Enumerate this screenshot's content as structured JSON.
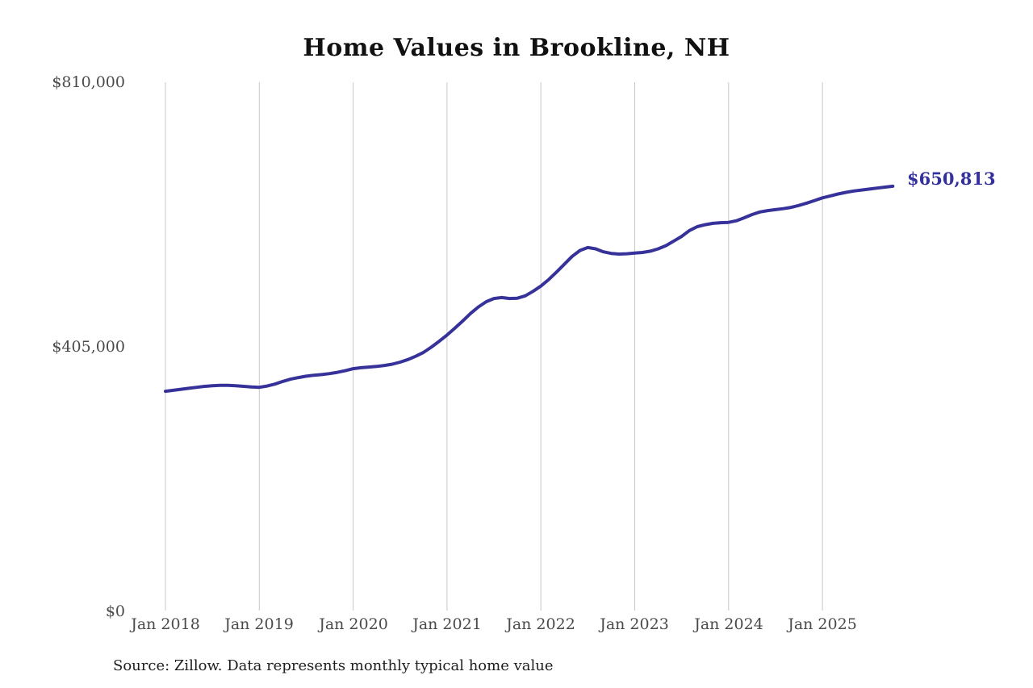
{
  "title": "Home Values in Brookline, NH",
  "source_note": "Source: Zillow. Data represents monthly typical home value",
  "colors": {
    "line": "#36329a",
    "end_label": "#34319e",
    "gridline": "#c8c8c8",
    "tick_text": "#4a4a4a",
    "title_text": "#111111"
  },
  "chart_data": {
    "type": "line",
    "title": "Home Values in Brookline, NH",
    "xlabel": "",
    "ylabel": "",
    "ylim": [
      0,
      810000
    ],
    "grid": "vertical-only",
    "legend_position": "none",
    "x_start": "Jan 2018",
    "x_end": "Oct 2025",
    "x_interval": "monthly",
    "x_ticks": [
      "Jan 2018",
      "Jan 2019",
      "Jan 2020",
      "Jan 2021",
      "Jan 2022",
      "Jan 2023",
      "Jan 2024",
      "Jan 2025"
    ],
    "y_ticks": [
      "$810,000",
      "$405,000",
      "$0"
    ],
    "end_label": "$650,813",
    "end_value": 650813,
    "series": [
      {
        "name": "Typical home value",
        "color": "#36329a",
        "values": [
          337000,
          338500,
          340000,
          341500,
          343000,
          344500,
          345500,
          346000,
          346000,
          345500,
          344500,
          343500,
          343000,
          345000,
          348000,
          352000,
          355500,
          358000,
          360000,
          361500,
          362500,
          364000,
          366000,
          368500,
          371500,
          373000,
          374000,
          375000,
          376500,
          378500,
          381500,
          385500,
          390500,
          396500,
          404500,
          413500,
          423000,
          433500,
          444500,
          456000,
          466000,
          474000,
          479000,
          480500,
          479000,
          479500,
          483000,
          490000,
          498000,
          508000,
          519500,
          531500,
          543500,
          552500,
          557000,
          555000,
          550500,
          548000,
          547000,
          547500,
          548500,
          549500,
          551500,
          555000,
          560000,
          567000,
          574000,
          583000,
          589000,
          592000,
          594000,
          595000,
          595500,
          598000,
          602500,
          607500,
          611500,
          613500,
          615000,
          616500,
          618500,
          621500,
          625000,
          629000,
          633000,
          636000,
          639000,
          641500,
          643500,
          645000,
          646500,
          648000,
          649500,
          650813
        ]
      }
    ]
  }
}
